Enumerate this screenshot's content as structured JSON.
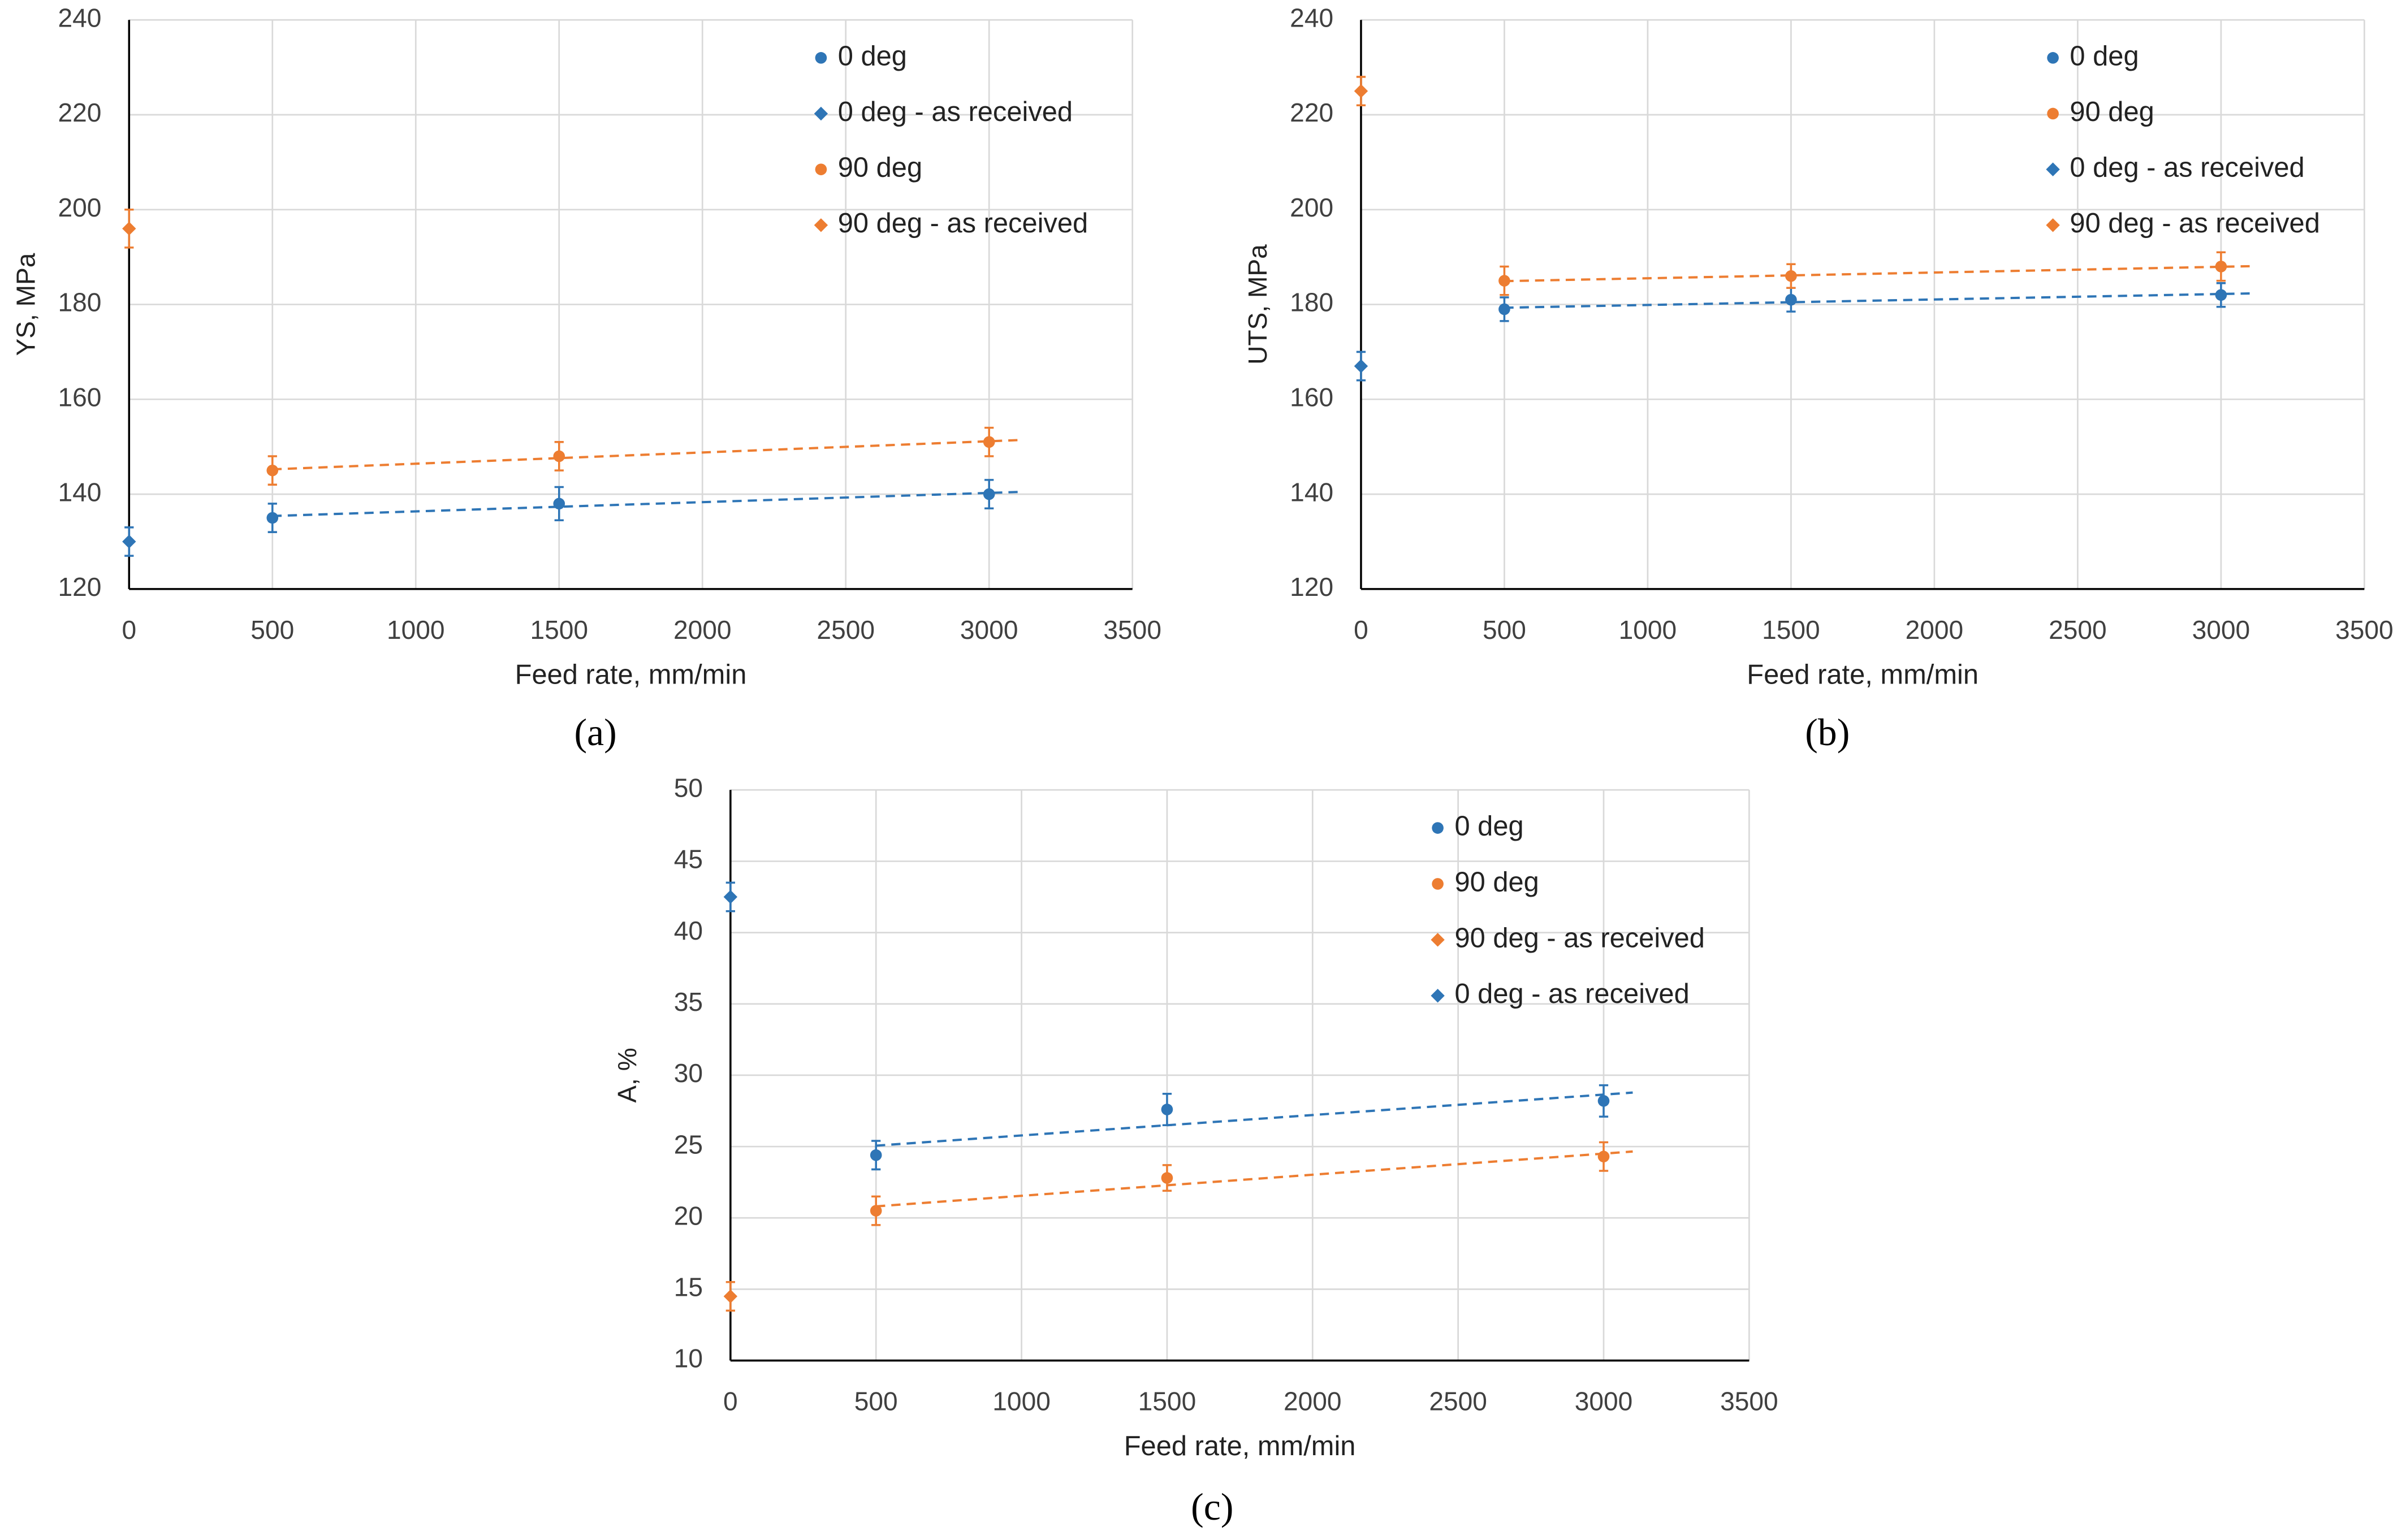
{
  "chart_data": [
    {
      "type": "scatter",
      "caption": "(a)",
      "xlabel": "Feed rate,  mm/min",
      "ylabel": "YS,  MPa",
      "xlim": [
        0,
        3500
      ],
      "xticks": [
        0,
        500,
        1000,
        1500,
        2000,
        2500,
        3000,
        3500
      ],
      "ylim": [
        120,
        240
      ],
      "yticks": [
        120,
        140,
        160,
        180,
        200,
        220,
        240
      ],
      "grid": true,
      "legend": "upper right",
      "series": [
        {
          "name": "0 deg",
          "color": "#2e75b6",
          "marker": "circle",
          "trendline": true,
          "x": [
            500,
            1500,
            3000
          ],
          "values": [
            135,
            138,
            140
          ],
          "errors": [
            3,
            3.5,
            3
          ]
        },
        {
          "name": "0 deg - as received",
          "color": "#2e75b6",
          "marker": "diamond",
          "trendline": false,
          "x": [
            0
          ],
          "values": [
            130
          ],
          "errors": [
            3
          ]
        },
        {
          "name": "90 deg",
          "color": "#ed7d31",
          "marker": "circle",
          "trendline": true,
          "x": [
            500,
            1500,
            3000
          ],
          "values": [
            145,
            148,
            151
          ],
          "errors": [
            3,
            3,
            3
          ]
        },
        {
          "name": "90 deg - as received",
          "color": "#ed7d31",
          "marker": "diamond",
          "trendline": false,
          "x": [
            0
          ],
          "values": [
            196
          ],
          "errors": [
            4
          ]
        }
      ]
    },
    {
      "type": "scatter",
      "caption": "(b)",
      "xlabel": "Feed rate,  mm/min",
      "ylabel": "UTS,  MPa",
      "xlim": [
        0,
        3500
      ],
      "xticks": [
        0,
        500,
        1000,
        1500,
        2000,
        2500,
        3000,
        3500
      ],
      "ylim": [
        120,
        240
      ],
      "yticks": [
        120,
        140,
        160,
        180,
        200,
        220,
        240
      ],
      "grid": true,
      "legend": "upper right",
      "series": [
        {
          "name": "0 deg",
          "color": "#2e75b6",
          "marker": "circle",
          "trendline": true,
          "x": [
            500,
            1500,
            3000
          ],
          "values": [
            179,
            181,
            182
          ],
          "errors": [
            2.5,
            2.5,
            2.5
          ]
        },
        {
          "name": "90 deg",
          "color": "#ed7d31",
          "marker": "circle",
          "trendline": true,
          "x": [
            500,
            1500,
            3000
          ],
          "values": [
            185,
            186,
            188
          ],
          "errors": [
            3,
            2.5,
            3
          ]
        },
        {
          "name": "0 deg - as received",
          "color": "#2e75b6",
          "marker": "diamond",
          "trendline": false,
          "x": [
            0
          ],
          "values": [
            167
          ],
          "errors": [
            3
          ]
        },
        {
          "name": "90 deg - as received",
          "color": "#ed7d31",
          "marker": "diamond",
          "trendline": false,
          "x": [
            0
          ],
          "values": [
            225
          ],
          "errors": [
            3
          ]
        }
      ]
    },
    {
      "type": "scatter",
      "caption": "(c)",
      "xlabel": "Feed rate,  mm/min",
      "ylabel": "A, %",
      "xlim": [
        0,
        3500
      ],
      "xticks": [
        0,
        500,
        1000,
        1500,
        2000,
        2500,
        3000,
        3500
      ],
      "ylim": [
        10,
        50
      ],
      "yticks": [
        10,
        15,
        20,
        25,
        30,
        35,
        40,
        45,
        50
      ],
      "grid": true,
      "legend": "upper right",
      "series": [
        {
          "name": "0 deg",
          "color": "#2e75b6",
          "marker": "circle",
          "trendline": true,
          "x": [
            500,
            1500,
            3000
          ],
          "values": [
            24.4,
            27.6,
            28.2
          ],
          "errors": [
            1,
            1.1,
            1.1
          ]
        },
        {
          "name": "90 deg",
          "color": "#ed7d31",
          "marker": "circle",
          "trendline": true,
          "x": [
            500,
            1500,
            3000
          ],
          "values": [
            20.5,
            22.8,
            24.3
          ],
          "errors": [
            1,
            0.9,
            1
          ]
        },
        {
          "name": "90 deg - as received",
          "color": "#ed7d31",
          "marker": "diamond",
          "trendline": false,
          "x": [
            0
          ],
          "values": [
            14.5
          ],
          "errors": [
            1
          ]
        },
        {
          "name": "0 deg - as received",
          "color": "#2e75b6",
          "marker": "diamond",
          "trendline": false,
          "x": [
            0
          ],
          "values": [
            42.5
          ],
          "errors": [
            1
          ]
        }
      ]
    }
  ]
}
